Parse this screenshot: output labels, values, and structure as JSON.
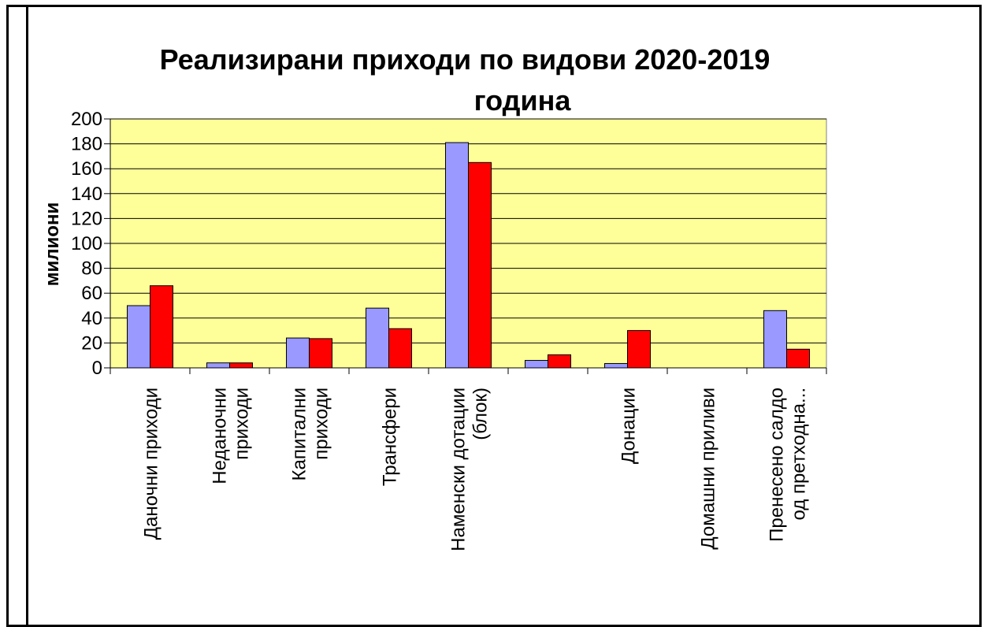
{
  "chart_data": {
    "type": "bar",
    "title": "Реализирани приходи по видови 2020-2019 година",
    "title_lines": [
      "Реализирани приходи по видови 2020-2019",
      "година"
    ],
    "ylabel": "милиони",
    "xlabel": "",
    "ylim": [
      0,
      200
    ],
    "yticks": [
      0,
      20,
      40,
      60,
      80,
      100,
      120,
      140,
      160,
      180,
      200
    ],
    "grid": true,
    "legend": "none",
    "plot_background": "#ffff99",
    "categories": [
      [
        "Даночни приходи"
      ],
      [
        "Неданочни",
        "приходи"
      ],
      [
        "Капитални",
        "приходи"
      ],
      [
        "Трансфери"
      ],
      [
        "Наменски дотации",
        "(блок)"
      ],
      [
        ""
      ],
      [
        "Донации"
      ],
      [
        "Домашни приливи"
      ],
      [
        "Пренесено салдо",
        "од претходна..."
      ]
    ],
    "series": [
      {
        "color": "#9999ff",
        "values": [
          50,
          4,
          24,
          48,
          181,
          6,
          3.5,
          0,
          46
        ]
      },
      {
        "color": "#ff0000",
        "values": [
          66,
          4,
          23.5,
          31.5,
          165,
          10.5,
          30,
          0,
          15
        ]
      }
    ]
  }
}
